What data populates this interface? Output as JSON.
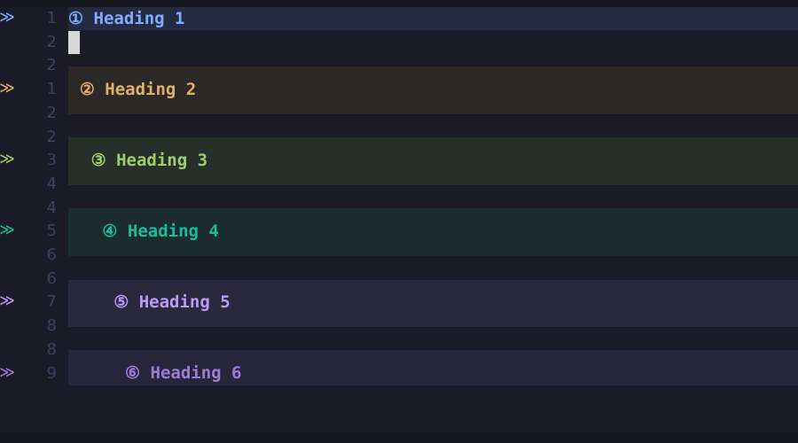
{
  "editor": {
    "line_numbers": [
      "1",
      "2",
      "2",
      "1",
      "2",
      "2",
      "3",
      "4",
      "4",
      "5",
      "6",
      "6",
      "7",
      "8",
      "8",
      "9"
    ],
    "headings": [
      {
        "icon": "①",
        "text": "Heading 1",
        "color": "#82aaff",
        "band": "#232b42",
        "sign_icon": "heading-sign-icon"
      },
      {
        "icon": "②",
        "text": "Heading 2",
        "color": "#e0af68",
        "band": "#2b2827",
        "sign_icon": "heading-sign-icon"
      },
      {
        "icon": "③",
        "text": "Heading 3",
        "color": "#9ece6a",
        "band": "#272f2b",
        "sign_icon": "heading-sign-icon"
      },
      {
        "icon": "④",
        "text": "Heading 4",
        "color": "#1abc9c",
        "band": "#1b2b2e",
        "sign_icon": "heading-sign-icon"
      },
      {
        "icon": "⑤",
        "text": "Heading 5",
        "color": "#bb9af7",
        "band": "#2a283d",
        "sign_icon": "heading-sign-icon"
      },
      {
        "icon": "⑥",
        "text": "Heading 6",
        "color": "#9d7cd8",
        "band": "#272539",
        "sign_icon": "heading-sign-icon"
      }
    ],
    "sign_glyph": "ᐳᐳ"
  }
}
